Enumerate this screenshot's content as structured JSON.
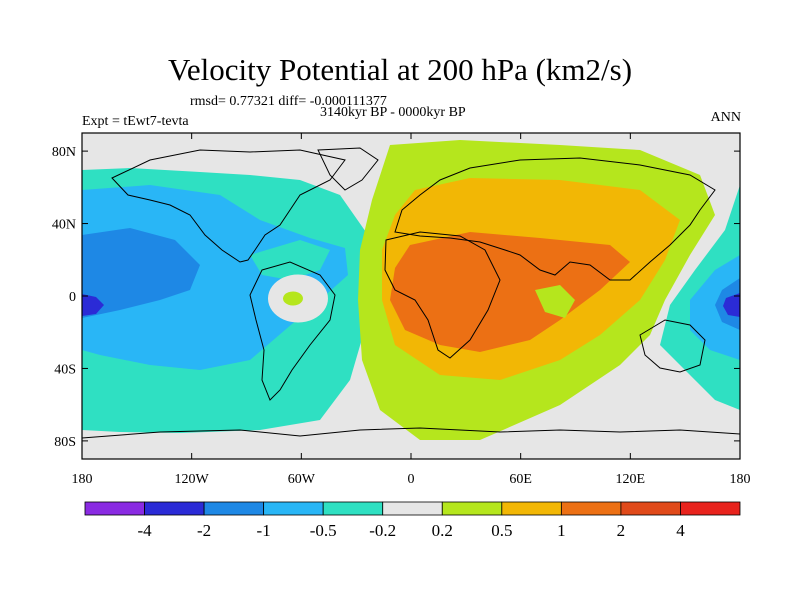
{
  "figure": {
    "title": "Velocity Potential at 200 hPa (km2/s)",
    "stats_line": "rmsd= 0.77321 diff= -0.000111377",
    "experiment": "Expt = tEwt7-tevta",
    "period": "3140kyr BP - 0000kyr BP",
    "season": "ANN"
  },
  "axes": {
    "lat_ticks": [
      {
        "label": "80N",
        "lat": 80
      },
      {
        "label": "40N",
        "lat": 40
      },
      {
        "label": "0",
        "lat": 0
      },
      {
        "label": "40S",
        "lat": -40
      },
      {
        "label": "80S",
        "lat": -80
      }
    ],
    "lon_ticks": [
      {
        "label": "180",
        "lon": -180
      },
      {
        "label": "120W",
        "lon": -120
      },
      {
        "label": "60W",
        "lon": -60
      },
      {
        "label": "0",
        "lon": 0
      },
      {
        "label": "60E",
        "lon": 60
      },
      {
        "label": "120E",
        "lon": 120
      },
      {
        "label": "180",
        "lon": 180
      }
    ],
    "lat_range": [
      -90,
      90
    ],
    "lon_range": [
      -180,
      180
    ]
  },
  "colorbar": {
    "labels": [
      "-4",
      "-2",
      "-1",
      "-0.5",
      "-0.2",
      "0.2",
      "0.5",
      "1",
      "2",
      "4"
    ],
    "colors": [
      "#8a2be2",
      "#2b2bd6",
      "#1e88e5",
      "#29b6f6",
      "#2fe0c2",
      "#e6e6e6",
      "#b5e61d",
      "#f2b705",
      "#ec7014",
      "#e04a1a",
      "#e8231d"
    ]
  },
  "regions": {
    "pacific_east_negative": {
      "label": "-0.2 to -0.5",
      "color": "#2fe0c2"
    },
    "pacific_core": {
      "label": "-0.5 to -1",
      "color": "#29b6f6"
    },
    "pacific_deep": {
      "label": "-1 to -2",
      "color": "#1e88e5"
    },
    "dateline_min": {
      "label": "-2 to -4",
      "color": "#2b2bd6"
    },
    "afro_asia_positive": {
      "label": "0.2 to 0.5",
      "color": "#b5e61d"
    },
    "afro_asia_mid": {
      "label": "0.5 to 1",
      "color": "#f2b705"
    },
    "afro_asia_max": {
      "label": "1 to 2",
      "color": "#ec7014"
    },
    "neutral": {
      "label": "-0.2 to 0.2",
      "color": "#e6e6e6"
    }
  }
}
